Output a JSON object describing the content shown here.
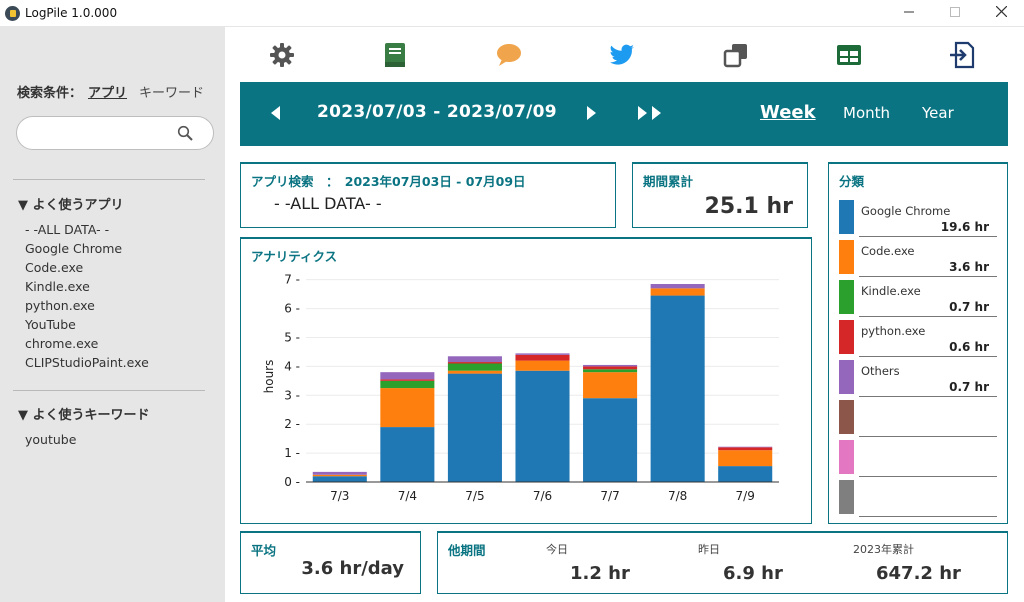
{
  "window": {
    "title": "LogPile  1.0.000"
  },
  "sidebar": {
    "search_label": "検索条件：",
    "mode_app": "アプリ",
    "mode_keyword": "キーワード",
    "search_value": "",
    "fav_apps_title": "▼ よく使うアプリ",
    "fav_apps": [
      "- -ALL DATA- -",
      "Google Chrome",
      "Code.exe",
      "Kindle.exe",
      "python.exe",
      "YouTube",
      "chrome.exe",
      "CLIPStudioPaint.exe"
    ],
    "fav_keywords_title": "▼ よく使うキーワード",
    "fav_keywords": [
      "youtube"
    ]
  },
  "toolbar": {
    "icons": [
      "gear-icon",
      "book-icon",
      "chat-bubble-icon",
      "twitter-bird-icon",
      "copy-windows-icon",
      "table-grid-icon",
      "export-file-icon"
    ]
  },
  "period": {
    "range": "2023/07/03 - 2023/07/09",
    "tabs": [
      "Week",
      "Month",
      "Year"
    ],
    "active_tab": "Week"
  },
  "app_search": {
    "title": "アプリ検索　：　2023年07月03日 - 07月09日",
    "value": "- -ALL DATA- -"
  },
  "period_total": {
    "title": "期間累計",
    "value": "25.1 hr"
  },
  "classification": {
    "title": "分類",
    "items": [
      {
        "name": "Google Chrome",
        "value": "19.6 hr",
        "color": "#1f77b4"
      },
      {
        "name": "Code.exe",
        "value": "3.6 hr",
        "color": "#ff7f0e"
      },
      {
        "name": "Kindle.exe",
        "value": "0.7 hr",
        "color": "#2ca02c"
      },
      {
        "name": "python.exe",
        "value": "0.6 hr",
        "color": "#d62728"
      },
      {
        "name": "Others",
        "value": "0.7 hr",
        "color": "#9467bd"
      },
      {
        "name": "",
        "value": "",
        "color": "#8c564b"
      },
      {
        "name": "",
        "value": "",
        "color": "#e377c2"
      },
      {
        "name": "",
        "value": "",
        "color": "#7f7f7f"
      }
    ]
  },
  "analytics": {
    "title": "アナリティクス"
  },
  "chart_data": {
    "type": "bar",
    "stacked": true,
    "categories": [
      "7/3",
      "7/4",
      "7/5",
      "7/6",
      "7/7",
      "7/8",
      "7/9"
    ],
    "ylabel": "hours",
    "xlabel": "",
    "ylim": [
      0,
      7.3
    ],
    "yticks": [
      0,
      1,
      2,
      3,
      4,
      5,
      6,
      7
    ],
    "grid": true,
    "series": [
      {
        "name": "Google Chrome",
        "color": "#1f77b4",
        "values": [
          0.2,
          1.9,
          3.75,
          3.85,
          2.9,
          6.45,
          0.55
        ]
      },
      {
        "name": "Code.exe",
        "color": "#ff7f0e",
        "values": [
          0.05,
          1.35,
          0.1,
          0.35,
          0.9,
          0.25,
          0.55
        ]
      },
      {
        "name": "Kindle.exe",
        "color": "#2ca02c",
        "values": [
          0.0,
          0.25,
          0.25,
          0.0,
          0.1,
          0.0,
          0.0
        ]
      },
      {
        "name": "python.exe",
        "color": "#d62728",
        "values": [
          0.0,
          0.05,
          0.05,
          0.2,
          0.1,
          0.0,
          0.1
        ]
      },
      {
        "name": "Others",
        "color": "#9467bd",
        "values": [
          0.1,
          0.25,
          0.2,
          0.05,
          0.05,
          0.15,
          0.02
        ]
      }
    ]
  },
  "average": {
    "title": "平均",
    "value": "3.6 hr/day"
  },
  "other_period": {
    "title": "他期間",
    "items": [
      {
        "label": "今日",
        "value": "1.2 hr"
      },
      {
        "label": "昨日",
        "value": "6.9 hr"
      },
      {
        "label": "2023年累計",
        "value": "647.2 hr"
      }
    ]
  }
}
